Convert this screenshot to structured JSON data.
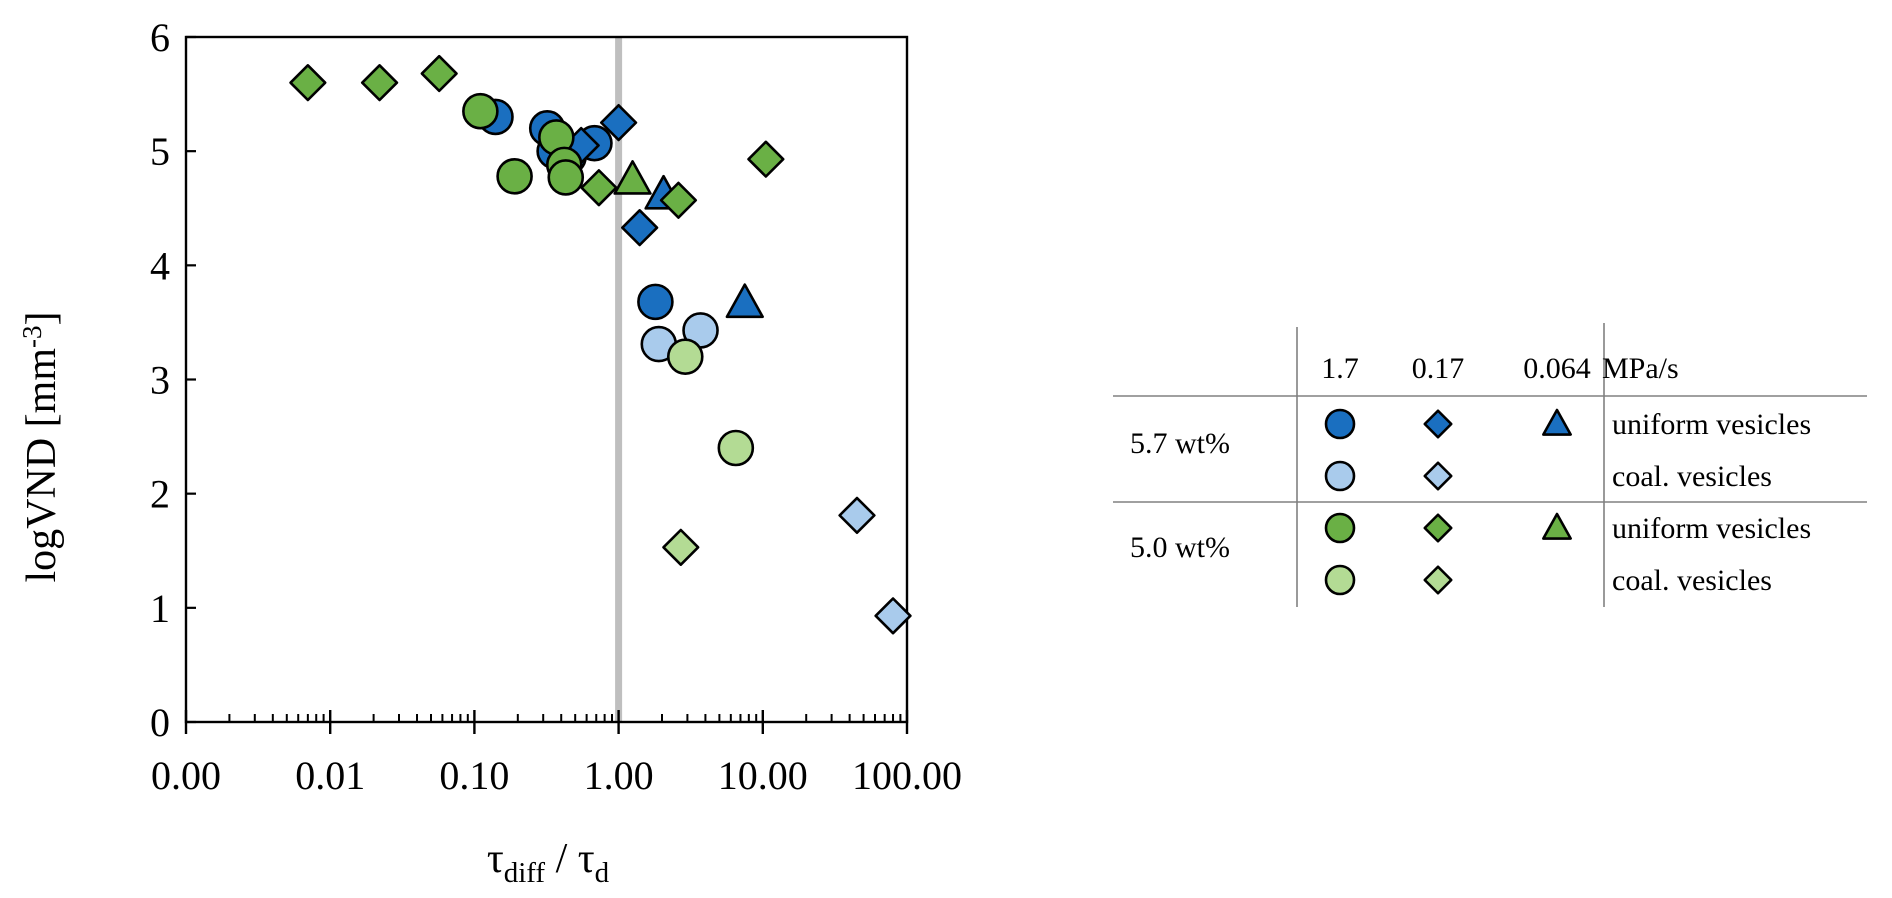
{
  "chart_data": {
    "type": "scatter",
    "xscale": "log",
    "xlim": [
      0.001,
      100
    ],
    "ylim": [
      0,
      6
    ],
    "xlabel_main": "τ",
    "xlabel_sub1": "diff",
    "xlabel_sep": " / τ",
    "xlabel_sub2": "d",
    "ylabel_main": "logVND [mm",
    "ylabel_sup": "-3",
    "ylabel_end": "]",
    "x_tick_values": [
      0.001,
      0.01,
      0.1,
      1,
      10,
      100
    ],
    "x_tick_labels": [
      "0.00",
      "0.01",
      "0.10",
      "1.00",
      "10.00",
      "100.00"
    ],
    "y_tick_values": [
      0,
      1,
      2,
      3,
      4,
      5,
      6
    ],
    "y_tick_labels": [
      "0",
      "1",
      "2",
      "3",
      "4",
      "5",
      "6"
    ],
    "vertical_line_x": 1,
    "colors": {
      "dark_blue": "#1a6fc0",
      "light_blue": "#a9cbec",
      "dark_green": "#6ab045",
      "light_green": "#b3db94",
      "reference_line": "#bfbfbf"
    },
    "series": [
      {
        "color": "dark_blue",
        "marker": "circle",
        "points": [
          [
            0.14,
            5.3
          ],
          [
            0.32,
            5.2
          ],
          [
            0.36,
            5.0
          ],
          [
            0.45,
            4.95
          ],
          [
            0.68,
            5.07
          ],
          [
            1.8,
            3.68
          ]
        ]
      },
      {
        "color": "dark_blue",
        "marker": "diamond",
        "points": [
          [
            0.55,
            5.05
          ],
          [
            1.0,
            5.25
          ],
          [
            1.4,
            4.33
          ]
        ]
      },
      {
        "color": "dark_blue",
        "marker": "triangle",
        "points": [
          [
            2.05,
            4.62
          ],
          [
            7.5,
            3.67
          ]
        ]
      },
      {
        "color": "light_blue",
        "marker": "circle",
        "points": [
          [
            1.9,
            3.31
          ],
          [
            3.7,
            3.43
          ]
        ]
      },
      {
        "color": "light_blue",
        "marker": "diamond",
        "points": [
          [
            45,
            1.81
          ],
          [
            80,
            0.93
          ]
        ]
      },
      {
        "color": "dark_green",
        "marker": "circle",
        "points": [
          [
            0.11,
            5.35
          ],
          [
            0.19,
            4.78
          ],
          [
            0.37,
            5.12
          ],
          [
            0.42,
            4.88
          ],
          [
            0.43,
            4.77
          ]
        ]
      },
      {
        "color": "dark_green",
        "marker": "diamond",
        "points": [
          [
            0.007,
            5.6
          ],
          [
            0.022,
            5.6
          ],
          [
            0.057,
            5.68
          ],
          [
            0.73,
            4.68
          ],
          [
            2.6,
            4.57
          ],
          [
            10.5,
            4.93
          ]
        ]
      },
      {
        "color": "dark_green",
        "marker": "triangle",
        "points": [
          [
            1.25,
            4.75
          ]
        ]
      },
      {
        "color": "light_green",
        "marker": "circle",
        "points": [
          [
            2.9,
            3.2
          ],
          [
            6.5,
            2.4
          ]
        ]
      },
      {
        "color": "light_green",
        "marker": "diamond",
        "points": [
          [
            2.7,
            1.53
          ]
        ]
      }
    ]
  },
  "legend": {
    "rate_headers": [
      "1.7",
      "0.17",
      "0.064",
      "MPa/s"
    ],
    "groups": [
      {
        "label": "5.7 wt%",
        "rows": [
          {
            "color": "dark_blue",
            "markers": [
              "circle",
              "diamond",
              "triangle"
            ],
            "text": "uniform vesicles"
          },
          {
            "color": "light_blue",
            "markers": [
              "circle",
              "diamond"
            ],
            "text": "coal. vesicles"
          }
        ]
      },
      {
        "label": "5.0 wt%",
        "rows": [
          {
            "color": "dark_green",
            "markers": [
              "circle",
              "diamond",
              "triangle"
            ],
            "text": "uniform vesicles"
          },
          {
            "color": "light_green",
            "markers": [
              "circle",
              "diamond"
            ],
            "text": "coal. vesicles"
          }
        ]
      }
    ]
  }
}
